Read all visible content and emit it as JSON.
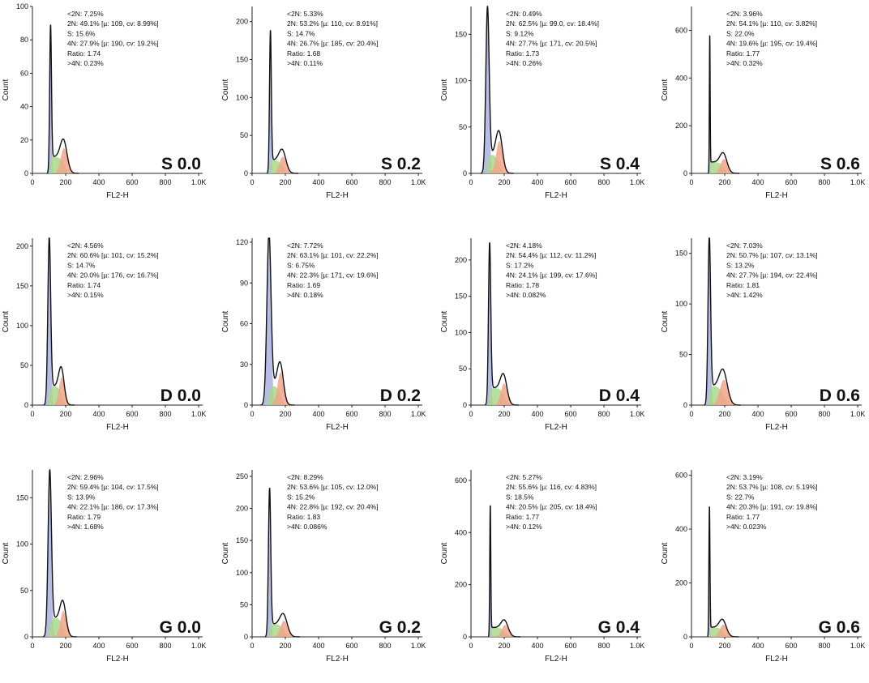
{
  "chart_data": [
    {
      "type": "histogram",
      "xlabel": "FL2-H",
      "ylabel": "Count",
      "xticks": [
        "0",
        "200",
        "400",
        "600",
        "800",
        "1.0K"
      ],
      "yticks": [
        0,
        20,
        40,
        60,
        80,
        100
      ],
      "ymax": 100,
      "g1_peak": 84,
      "g2_height": 15,
      "g1_mu": 109,
      "g2_mu": 190,
      "cv1": 8.99,
      "cv2": 19.2,
      "label": "S 0.0",
      "stats": [
        "<2N: 7.25%",
        "2N: 49.1%  [µ: 109, cv: 8.99%]",
        "S: 15.6%",
        "4N: 27.9%  [µ: 190, cv: 19.2%]",
        "Ratio: 1.74",
        ">4N: 0.23%"
      ]
    },
    {
      "type": "histogram",
      "xlabel": "FL2-H",
      "ylabel": "Count",
      "xticks": [
        "0",
        "200",
        "400",
        "600",
        "800",
        "1.0K"
      ],
      "yticks": [
        0,
        50,
        100,
        150,
        200
      ],
      "ymax": 220,
      "g1_peak": 180,
      "g2_height": 22,
      "g1_mu": 110,
      "g2_mu": 185,
      "cv1": 8.91,
      "cv2": 20.4,
      "label": "S 0.2",
      "stats": [
        "<2N: 5.33%",
        "2N: 53.2%  [µ: 110, cv: 8.91%]",
        "S: 14.7%",
        "4N: 26.7%  [µ: 185, cv: 20.4%]",
        "Ratio: 1.68",
        ">4N: 0.11%"
      ]
    },
    {
      "type": "histogram",
      "xlabel": "FL2-H",
      "ylabel": "Count",
      "xticks": [
        "0",
        "200",
        "400",
        "600",
        "800",
        "1.0K"
      ],
      "yticks": [
        0,
        50,
        100,
        150
      ],
      "ymax": 180,
      "g1_peak": 170,
      "g2_height": 35,
      "g1_mu": 99.0,
      "g2_mu": 171,
      "cv1": 18.4,
      "cv2": 20.5,
      "label": "S 0.4",
      "stats": [
        "<2N: 0.49%",
        "2N: 62.5%  [µ: 99.0, cv: 18.4%]",
        "S: 9.12%",
        "4N: 27.7%  [µ: 171, cv: 20.5%]",
        "Ratio: 1.73",
        ">4N: 0.26%"
      ]
    },
    {
      "type": "histogram",
      "xlabel": "FL2-H",
      "ylabel": "Count",
      "xticks": [
        "0",
        "200",
        "400",
        "600",
        "800",
        "1.0K"
      ],
      "yticks": [
        0,
        200,
        400,
        600
      ],
      "ymax": 700,
      "g1_peak": 560,
      "g2_height": 60,
      "g1_mu": 110,
      "g2_mu": 195,
      "cv1": 3.82,
      "cv2": 19.4,
      "label": "S 0.6",
      "stats": [
        "<2N: 3.96%",
        "2N: 54.1%  [µ: 110, cv: 3.82%]",
        "S: 22.0%",
        "4N: 19.6%  [µ: 195, cv: 19.4%]",
        "Ratio: 1.77",
        ">4N: 0.32%"
      ]
    },
    {
      "type": "histogram",
      "xlabel": "FL2-H",
      "ylabel": "Count",
      "xticks": [
        "0",
        "200",
        "400",
        "600",
        "800",
        "1.0K"
      ],
      "yticks": [
        0,
        50,
        100,
        150,
        200
      ],
      "ymax": 210,
      "g1_peak": 200,
      "g2_height": 35,
      "g1_mu": 101,
      "g2_mu": 176,
      "cv1": 15.2,
      "cv2": 16.7,
      "label": "D 0.0",
      "stats": [
        "<2N: 4.56%",
        "2N: 60.6%  [µ: 101, cv: 15.2%]",
        "S: 14.7%",
        "4N: 20.0%  [µ: 176, cv: 16.7%]",
        "Ratio: 1.74",
        ">4N: 0.15%"
      ]
    },
    {
      "type": "histogram",
      "xlabel": "FL2-H",
      "ylabel": "Count",
      "xticks": [
        "0",
        "200",
        "400",
        "600",
        "800",
        "1.0K"
      ],
      "yticks": [
        0,
        30,
        60,
        90,
        120
      ],
      "ymax": 123,
      "g1_peak": 120,
      "g2_height": 24,
      "g1_mu": 101,
      "g2_mu": 171,
      "cv1": 22.2,
      "cv2": 19.6,
      "label": "D 0.2",
      "stats": [
        "<2N: 7.72%",
        "2N: 63.1%  [µ: 101, cv: 22.2%]",
        "S: 6.75%",
        "4N: 22.3%  [µ: 171, cv: 19.6%]",
        "Ratio: 1.69",
        ">4N: 0.18%"
      ]
    },
    {
      "type": "histogram",
      "xlabel": "FL2-H",
      "ylabel": "Count",
      "xticks": [
        "0",
        "200",
        "400",
        "600",
        "800",
        "1.0K"
      ],
      "yticks": [
        0,
        50,
        100,
        150,
        200
      ],
      "ymax": 230,
      "g1_peak": 212,
      "g2_height": 30,
      "g1_mu": 112,
      "g2_mu": 199,
      "cv1": 11.2,
      "cv2": 17.6,
      "label": "D 0.4",
      "stats": [
        "<2N: 4.18%",
        "2N: 54.4%  [µ: 112, cv: 11.2%]",
        "S: 17.2%",
        "4N: 24.1%  [µ: 199, cv: 17.6%]",
        "Ratio: 1.78",
        ">4N: 0.082%"
      ]
    },
    {
      "type": "histogram",
      "xlabel": "FL2-H",
      "ylabel": "Count",
      "xticks": [
        "0",
        "200",
        "400",
        "600",
        "800",
        "1.0K"
      ],
      "yticks": [
        0,
        50,
        100,
        150
      ],
      "ymax": 165,
      "g1_peak": 158,
      "g2_height": 25,
      "g1_mu": 107,
      "g2_mu": 194,
      "cv1": 13.1,
      "cv2": 22.4,
      "label": "D 0.6",
      "stats": [
        "<2N: 7.03%",
        "2N: 50.7%  [µ: 107, cv: 13.1%]",
        "S: 13.2%",
        "4N: 27.7%  [µ: 194, cv: 22.4%]",
        "Ratio: 1.81",
        ">4N: 1.42%"
      ]
    },
    {
      "type": "histogram",
      "xlabel": "FL2-H",
      "ylabel": "Count",
      "xticks": [
        "0",
        "200",
        "400",
        "600",
        "800",
        "1.0K"
      ],
      "yticks": [
        0,
        50,
        100,
        150
      ],
      "ymax": 180,
      "g1_peak": 170,
      "g2_height": 28,
      "g1_mu": 104,
      "g2_mu": 186,
      "cv1": 17.5,
      "cv2": 17.3,
      "label": "G 0.0",
      "stats": [
        "<2N: 2.96%",
        "2N: 59.4%  [µ: 104, cv: 17.5%]",
        "S: 13.9%",
        "4N: 22.1%  [µ: 186, cv: 17.3%]",
        "Ratio: 1.79",
        ">4N: 1.68%"
      ]
    },
    {
      "type": "histogram",
      "xlabel": "FL2-H",
      "ylabel": "Count",
      "xticks": [
        "0",
        "200",
        "400",
        "600",
        "800",
        "1.0K"
      ],
      "yticks": [
        0,
        50,
        100,
        150,
        200,
        250
      ],
      "ymax": 260,
      "g1_peak": 222,
      "g2_height": 25,
      "g1_mu": 105,
      "g2_mu": 192,
      "cv1": 12.0,
      "cv2": 20.4,
      "label": "G 0.2",
      "stats": [
        "<2N: 8.29%",
        "2N: 53.6%  [µ: 105, cv: 12.0%]",
        "S: 15.2%",
        "4N: 22.8%  [µ: 192, cv: 20.4%]",
        "Ratio: 1.83",
        ">4N: 0.086%"
      ]
    },
    {
      "type": "histogram",
      "xlabel": "FL2-H",
      "ylabel": "Count",
      "xticks": [
        "0",
        "200",
        "400",
        "600",
        "800",
        "1.0K"
      ],
      "yticks": [
        0,
        200,
        400,
        600
      ],
      "ymax": 640,
      "g1_peak": 490,
      "g2_height": 45,
      "g1_mu": 116,
      "g2_mu": 205,
      "cv1": 4.83,
      "cv2": 18.4,
      "label": "G 0.4",
      "stats": [
        "<2N: 5.27%",
        "2N: 55.6%  [µ: 116, cv: 4.83%]",
        "S: 18.5%",
        "4N: 20.5%  [µ: 205, cv: 18.4%]",
        "Ratio: 1.77",
        ">4N: 0.12%"
      ]
    },
    {
      "type": "histogram",
      "xlabel": "FL2-H",
      "ylabel": "Count",
      "xticks": [
        "0",
        "200",
        "400",
        "600",
        "800",
        "1.0K"
      ],
      "yticks": [
        0,
        200,
        400,
        600
      ],
      "ymax": 620,
      "g1_peak": 470,
      "g2_height": 45,
      "g1_mu": 108,
      "g2_mu": 191,
      "cv1": 5.19,
      "cv2": 19.8,
      "label": "G 0.6",
      "stats": [
        "<2N: 3.19%",
        "2N: 53.7%  [µ: 108, cv: 5.19%]",
        "S: 22.7%",
        "4N: 20.3%  [µ: 191, cv: 19.8%]",
        "Ratio: 1.77",
        ">4N: 0.023%"
      ]
    }
  ],
  "colors": {
    "curve": "#111111",
    "g1_fill": "#aab2e0",
    "s_fill": "#a9d98a",
    "g2_fill": "#f2a58a",
    "axis": "#222222"
  }
}
